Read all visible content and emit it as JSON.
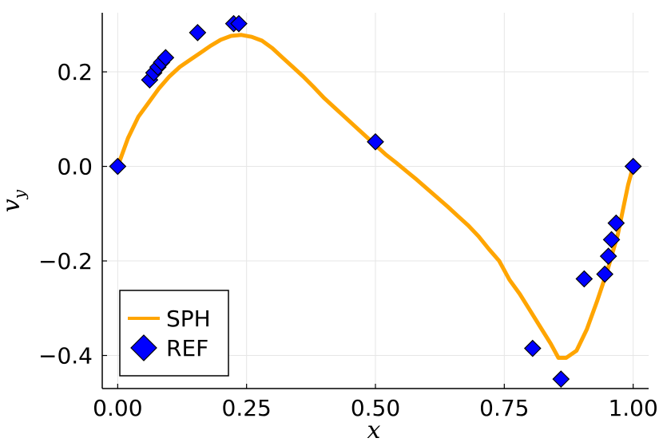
{
  "chart_data": {
    "type": "line",
    "xlabel": "x",
    "ylabel": "v",
    "ylabel_subscript": "y",
    "xlim": [
      -0.03,
      1.03
    ],
    "ylim": [
      -0.47,
      0.325
    ],
    "grid": true,
    "legend_position": "bottom-left",
    "x_ticks": [
      0.0,
      0.25,
      0.5,
      0.75,
      1.0
    ],
    "x_tick_labels": [
      "0.00",
      "0.25",
      "0.50",
      "0.75",
      "1.00"
    ],
    "y_ticks": [
      -0.4,
      -0.2,
      0.0,
      0.2
    ],
    "y_tick_labels": [
      "−0.4",
      "−0.2",
      "0.0",
      "0.2"
    ],
    "series": [
      {
        "name": "SPH",
        "kind": "line",
        "color": "#FFA500",
        "x": [
          0.0,
          0.02,
          0.04,
          0.06,
          0.08,
          0.1,
          0.12,
          0.14,
          0.16,
          0.18,
          0.2,
          0.22,
          0.24,
          0.26,
          0.28,
          0.3,
          0.32,
          0.34,
          0.36,
          0.38,
          0.4,
          0.42,
          0.44,
          0.46,
          0.48,
          0.5,
          0.52,
          0.54,
          0.56,
          0.58,
          0.6,
          0.62,
          0.64,
          0.66,
          0.68,
          0.7,
          0.72,
          0.74,
          0.76,
          0.78,
          0.8,
          0.82,
          0.84,
          0.855,
          0.87,
          0.89,
          0.91,
          0.93,
          0.95,
          0.97,
          0.99,
          1.0
        ],
        "y": [
          0.0,
          0.06,
          0.105,
          0.135,
          0.165,
          0.19,
          0.21,
          0.225,
          0.24,
          0.255,
          0.268,
          0.276,
          0.278,
          0.274,
          0.266,
          0.25,
          0.23,
          0.21,
          0.19,
          0.168,
          0.145,
          0.125,
          0.105,
          0.085,
          0.065,
          0.045,
          0.025,
          0.008,
          -0.01,
          -0.028,
          -0.047,
          -0.066,
          -0.085,
          -0.105,
          -0.125,
          -0.148,
          -0.175,
          -0.2,
          -0.24,
          -0.27,
          -0.305,
          -0.34,
          -0.375,
          -0.405,
          -0.405,
          -0.39,
          -0.345,
          -0.285,
          -0.22,
          -0.145,
          -0.04,
          0.0
        ]
      },
      {
        "name": "REF",
        "kind": "scatter",
        "marker": "diamond",
        "color": "#0000FF",
        "x": [
          0.0,
          0.062,
          0.07,
          0.078,
          0.085,
          0.093,
          0.155,
          0.225,
          0.235,
          0.5,
          0.805,
          0.86,
          0.905,
          0.945,
          0.952,
          0.958,
          0.967,
          1.0
        ],
        "y": [
          0.0,
          0.183,
          0.198,
          0.21,
          0.22,
          0.23,
          0.283,
          0.302,
          0.302,
          0.052,
          -0.385,
          -0.45,
          -0.238,
          -0.228,
          -0.19,
          -0.155,
          -0.12,
          0.0
        ]
      }
    ]
  }
}
